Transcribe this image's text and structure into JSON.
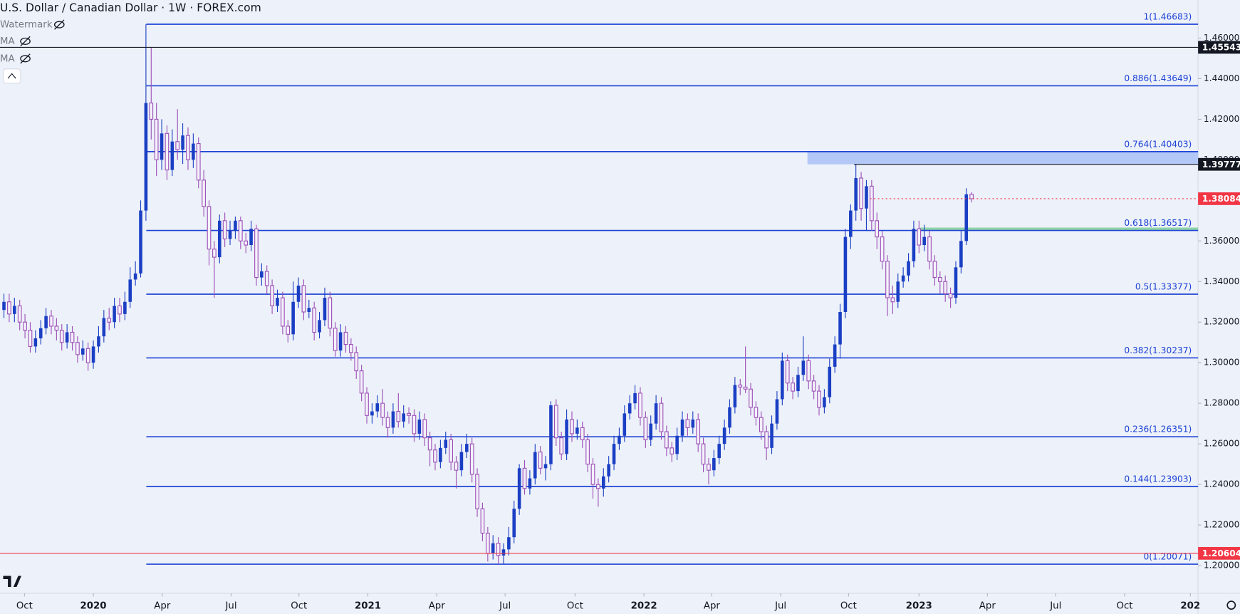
{
  "chart_data": {
    "type": "candlestick",
    "title": "U.S. Dollar / Canadian Dollar · 1W · FOREX.com",
    "indicators": [
      "Watermark",
      "MA",
      "MA"
    ],
    "grid": false,
    "up_color": "#1a3fc4",
    "down_color": "#9c4fb7",
    "xlim": [
      -0.75,
      227.07
    ],
    "xticks": [
      {
        "value": 3.9,
        "label": "Oct"
      },
      {
        "value": 17.0,
        "label": "2020"
      },
      {
        "value": 30.1,
        "label": "Apr"
      },
      {
        "value": 43.2,
        "label": "Jul"
      },
      {
        "value": 56.1,
        "label": "Oct"
      },
      {
        "value": 69.2,
        "label": "2021"
      },
      {
        "value": 82.3,
        "label": "Apr"
      },
      {
        "value": 95.3,
        "label": "Jul"
      },
      {
        "value": 108.6,
        "label": "Oct"
      },
      {
        "value": 121.7,
        "label": "2022"
      },
      {
        "value": 134.6,
        "label": "Apr"
      },
      {
        "value": 147.7,
        "label": "Jul"
      },
      {
        "value": 160.6,
        "label": "Oct"
      },
      {
        "value": 174.0,
        "label": "2023"
      },
      {
        "value": 187.0,
        "label": "Apr"
      },
      {
        "value": 200.0,
        "label": "Jul"
      },
      {
        "value": 213.1,
        "label": "Oct"
      },
      {
        "value": 225.6,
        "label": "202"
      }
    ],
    "ylim": [
      1.18635,
      1.4787
    ],
    "yticks": [
      {
        "value": 1.2,
        "label": "1.20000"
      },
      {
        "value": 1.22,
        "label": "1.22000"
      },
      {
        "value": 1.24,
        "label": "1.24000"
      },
      {
        "value": 1.26,
        "label": "1.26000"
      },
      {
        "value": 1.28,
        "label": "1.28000"
      },
      {
        "value": 1.3,
        "label": "1.30000"
      },
      {
        "value": 1.32,
        "label": "1.32000"
      },
      {
        "value": 1.34,
        "label": "1.34000"
      },
      {
        "value": 1.36,
        "label": "1.36000"
      },
      {
        "value": 1.38,
        "label": "1.38000"
      },
      {
        "value": 1.4,
        "label": "1.40000"
      },
      {
        "value": 1.42,
        "label": "1.42000"
      },
      {
        "value": 1.44,
        "label": "1.44000"
      },
      {
        "value": 1.46,
        "label": "1.46000"
      }
    ],
    "fib_color": "#1e44d6",
    "fib_levels": [
      {
        "label": "1(1.46683)",
        "value": 1.46683
      },
      {
        "label": "0.886(1.43649)",
        "value": 1.43649
      },
      {
        "label": "0.764(1.40403)",
        "value": 1.40403
      },
      {
        "label": "0.618(1.36517)",
        "value": 1.36517
      },
      {
        "label": "0.5(1.33377)",
        "value": 1.33377
      },
      {
        "label": "0.382(1.30237)",
        "value": 1.30237
      },
      {
        "label": "0.236(1.26351)",
        "value": 1.26351
      },
      {
        "label": "0.144(1.23903)",
        "value": 1.23903
      },
      {
        "label": "0(1.20071)",
        "value": 1.20071
      }
    ],
    "price_lines": [
      {
        "value": 1.45543,
        "color": "#131722",
        "style": "solid"
      },
      {
        "value": 1.39777,
        "color": "#131722",
        "style": "solid"
      },
      {
        "value": 1.38084,
        "color": "#f23645",
        "style": "dotted"
      },
      {
        "value": 1.20604,
        "color": "#f23645",
        "style": "solid"
      }
    ],
    "zones": [
      {
        "from": 1.39777,
        "to": 1.40403,
        "color": "#b3c8f7"
      },
      {
        "from": 1.3652,
        "to": 1.3666,
        "color": "#8fd4a8"
      }
    ],
    "ohlc": [
      [
        1.326,
        1.334,
        1.322,
        1.33
      ],
      [
        1.33,
        1.334,
        1.32,
        1.324
      ],
      [
        1.324,
        1.332,
        1.32,
        1.328
      ],
      [
        1.328,
        1.331,
        1.316,
        1.32
      ],
      [
        1.32,
        1.324,
        1.312,
        1.316
      ],
      [
        1.316,
        1.32,
        1.305,
        1.308
      ],
      [
        1.308,
        1.316,
        1.305,
        1.312
      ],
      [
        1.312,
        1.321,
        1.309,
        1.317
      ],
      [
        1.317,
        1.327,
        1.314,
        1.323
      ],
      [
        1.323,
        1.326,
        1.314,
        1.318
      ],
      [
        1.318,
        1.322,
        1.311,
        1.316
      ],
      [
        1.316,
        1.319,
        1.306,
        1.31
      ],
      [
        1.31,
        1.319,
        1.307,
        1.315
      ],
      [
        1.315,
        1.318,
        1.306,
        1.31
      ],
      [
        1.31,
        1.313,
        1.3,
        1.304
      ],
      [
        1.304,
        1.311,
        1.301,
        1.307
      ],
      [
        1.307,
        1.31,
        1.296,
        1.3
      ],
      [
        1.3,
        1.311,
        1.297,
        1.308
      ],
      [
        1.308,
        1.318,
        1.305,
        1.313
      ],
      [
        1.313,
        1.326,
        1.31,
        1.322
      ],
      [
        1.322,
        1.327,
        1.316,
        1.32
      ],
      [
        1.32,
        1.332,
        1.317,
        1.328
      ],
      [
        1.328,
        1.332,
        1.32,
        1.324
      ],
      [
        1.324,
        1.335,
        1.321,
        1.33
      ],
      [
        1.33,
        1.347,
        1.327,
        1.341
      ],
      [
        1.341,
        1.35,
        1.338,
        1.344
      ],
      [
        1.344,
        1.38,
        1.342,
        1.375
      ],
      [
        1.375,
        1.4668,
        1.37,
        1.428
      ],
      [
        1.428,
        1.4554,
        1.41,
        1.42
      ],
      [
        1.42,
        1.428,
        1.392,
        1.4
      ],
      [
        1.4,
        1.42,
        1.395,
        1.413
      ],
      [
        1.413,
        1.417,
        1.39,
        1.395
      ],
      [
        1.395,
        1.415,
        1.392,
        1.409
      ],
      [
        1.409,
        1.425,
        1.4,
        1.405
      ],
      [
        1.405,
        1.418,
        1.398,
        1.412
      ],
      [
        1.412,
        1.416,
        1.395,
        1.4
      ],
      [
        1.4,
        1.413,
        1.396,
        1.408
      ],
      [
        1.408,
        1.411,
        1.386,
        1.39
      ],
      [
        1.39,
        1.395,
        1.372,
        1.377
      ],
      [
        1.377,
        1.38,
        1.348,
        1.356
      ],
      [
        1.356,
        1.36,
        1.332,
        1.352
      ],
      [
        1.352,
        1.373,
        1.349,
        1.37
      ],
      [
        1.37,
        1.374,
        1.357,
        1.361
      ],
      [
        1.361,
        1.37,
        1.358,
        1.365
      ],
      [
        1.365,
        1.372,
        1.361,
        1.37
      ],
      [
        1.37,
        1.372,
        1.356,
        1.36
      ],
      [
        1.36,
        1.364,
        1.354,
        1.358
      ],
      [
        1.358,
        1.37,
        1.355,
        1.366
      ],
      [
        1.366,
        1.368,
        1.338,
        1.342
      ],
      [
        1.342,
        1.349,
        1.338,
        1.345
      ],
      [
        1.345,
        1.348,
        1.334,
        1.338
      ],
      [
        1.338,
        1.341,
        1.324,
        1.328
      ],
      [
        1.328,
        1.336,
        1.325,
        1.332
      ],
      [
        1.332,
        1.335,
        1.314,
        1.318
      ],
      [
        1.318,
        1.321,
        1.31,
        1.314
      ],
      [
        1.314,
        1.34,
        1.311,
        1.33
      ],
      [
        1.33,
        1.342,
        1.327,
        1.338
      ],
      [
        1.338,
        1.341,
        1.321,
        1.325
      ],
      [
        1.325,
        1.331,
        1.322,
        1.327
      ],
      [
        1.327,
        1.33,
        1.311,
        1.315
      ],
      [
        1.315,
        1.325,
        1.312,
        1.321
      ],
      [
        1.321,
        1.337,
        1.318,
        1.332
      ],
      [
        1.332,
        1.335,
        1.313,
        1.317
      ],
      [
        1.317,
        1.32,
        1.303,
        1.306
      ],
      [
        1.306,
        1.319,
        1.303,
        1.315
      ],
      [
        1.315,
        1.318,
        1.305,
        1.309
      ],
      [
        1.309,
        1.312,
        1.301,
        1.305
      ],
      [
        1.305,
        1.308,
        1.292,
        1.296
      ],
      [
        1.296,
        1.299,
        1.281,
        1.285
      ],
      [
        1.285,
        1.288,
        1.27,
        1.274
      ],
      [
        1.274,
        1.28,
        1.27,
        1.276
      ],
      [
        1.276,
        1.284,
        1.273,
        1.28
      ],
      [
        1.28,
        1.287,
        1.269,
        1.273
      ],
      [
        1.273,
        1.276,
        1.263,
        1.268
      ],
      [
        1.268,
        1.28,
        1.265,
        1.276
      ],
      [
        1.276,
        1.285,
        1.268,
        1.271
      ],
      [
        1.271,
        1.279,
        1.268,
        1.275
      ],
      [
        1.275,
        1.278,
        1.27,
        1.274
      ],
      [
        1.274,
        1.277,
        1.261,
        1.265
      ],
      [
        1.265,
        1.276,
        1.262,
        1.272
      ],
      [
        1.272,
        1.275,
        1.259,
        1.263
      ],
      [
        1.263,
        1.266,
        1.249,
        1.257
      ],
      [
        1.257,
        1.26,
        1.247,
        1.251
      ],
      [
        1.251,
        1.262,
        1.248,
        1.258
      ],
      [
        1.258,
        1.266,
        1.255,
        1.262
      ],
      [
        1.262,
        1.265,
        1.247,
        1.251
      ],
      [
        1.251,
        1.254,
        1.238,
        1.247
      ],
      [
        1.247,
        1.26,
        1.244,
        1.256
      ],
      [
        1.256,
        1.265,
        1.253,
        1.26
      ],
      [
        1.26,
        1.263,
        1.241,
        1.245
      ],
      [
        1.245,
        1.248,
        1.224,
        1.228
      ],
      [
        1.228,
        1.231,
        1.212,
        1.216
      ],
      [
        1.216,
        1.219,
        1.202,
        1.206
      ],
      [
        1.206,
        1.215,
        1.203,
        1.211
      ],
      [
        1.211,
        1.214,
        1.2007,
        1.205
      ],
      [
        1.205,
        1.211,
        1.201,
        1.208
      ],
      [
        1.208,
        1.219,
        1.205,
        1.214
      ],
      [
        1.214,
        1.232,
        1.211,
        1.228
      ],
      [
        1.228,
        1.25,
        1.225,
        1.248
      ],
      [
        1.248,
        1.252,
        1.235,
        1.238
      ],
      [
        1.238,
        1.247,
        1.235,
        1.243
      ],
      [
        1.243,
        1.26,
        1.24,
        1.256
      ],
      [
        1.256,
        1.259,
        1.245,
        1.248
      ],
      [
        1.248,
        1.254,
        1.242,
        1.25
      ],
      [
        1.25,
        1.281,
        1.247,
        1.279
      ],
      [
        1.279,
        1.282,
        1.259,
        1.263
      ],
      [
        1.263,
        1.266,
        1.252,
        1.255
      ],
      [
        1.255,
        1.277,
        1.252,
        1.272
      ],
      [
        1.272,
        1.276,
        1.261,
        1.265
      ],
      [
        1.265,
        1.272,
        1.262,
        1.268
      ],
      [
        1.268,
        1.271,
        1.258,
        1.262
      ],
      [
        1.262,
        1.265,
        1.246,
        1.25
      ],
      [
        1.25,
        1.253,
        1.233,
        1.24
      ],
      [
        1.24,
        1.243,
        1.229,
        1.238
      ],
      [
        1.238,
        1.248,
        1.234,
        1.244
      ],
      [
        1.244,
        1.254,
        1.241,
        1.25
      ],
      [
        1.25,
        1.264,
        1.247,
        1.26
      ],
      [
        1.26,
        1.268,
        1.257,
        1.264
      ],
      [
        1.264,
        1.279,
        1.261,
        1.275
      ],
      [
        1.275,
        1.284,
        1.272,
        1.28
      ],
      [
        1.28,
        1.289,
        1.277,
        1.285
      ],
      [
        1.285,
        1.288,
        1.269,
        1.273
      ],
      [
        1.273,
        1.276,
        1.258,
        1.262
      ],
      [
        1.262,
        1.274,
        1.259,
        1.27
      ],
      [
        1.27,
        1.284,
        1.267,
        1.28
      ],
      [
        1.28,
        1.283,
        1.262,
        1.266
      ],
      [
        1.266,
        1.269,
        1.254,
        1.258
      ],
      [
        1.258,
        1.261,
        1.251,
        1.255
      ],
      [
        1.255,
        1.268,
        1.252,
        1.264
      ],
      [
        1.264,
        1.276,
        1.261,
        1.272
      ],
      [
        1.272,
        1.275,
        1.264,
        1.268
      ],
      [
        1.268,
        1.276,
        1.265,
        1.272
      ],
      [
        1.272,
        1.275,
        1.256,
        1.26
      ],
      [
        1.26,
        1.263,
        1.246,
        1.25
      ],
      [
        1.25,
        1.253,
        1.24,
        1.247
      ],
      [
        1.247,
        1.257,
        1.244,
        1.253
      ],
      [
        1.253,
        1.264,
        1.25,
        1.26
      ],
      [
        1.26,
        1.272,
        1.257,
        1.268
      ],
      [
        1.268,
        1.282,
        1.265,
        1.278
      ],
      [
        1.278,
        1.293,
        1.275,
        1.289
      ],
      [
        1.289,
        1.292,
        1.284,
        1.288
      ],
      [
        1.288,
        1.308,
        1.285,
        1.287
      ],
      [
        1.287,
        1.29,
        1.274,
        1.278
      ],
      [
        1.278,
        1.281,
        1.269,
        1.273
      ],
      [
        1.273,
        1.276,
        1.262,
        1.266
      ],
      [
        1.266,
        1.269,
        1.252,
        1.258
      ],
      [
        1.258,
        1.274,
        1.255,
        1.27
      ],
      [
        1.27,
        1.286,
        1.267,
        1.282
      ],
      [
        1.282,
        1.305,
        1.279,
        1.301
      ],
      [
        1.301,
        1.304,
        1.286,
        1.29
      ],
      [
        1.29,
        1.293,
        1.282,
        1.286
      ],
      [
        1.286,
        1.298,
        1.283,
        1.294
      ],
      [
        1.294,
        1.313,
        1.291,
        1.301
      ],
      [
        1.301,
        1.304,
        1.287,
        1.291
      ],
      [
        1.291,
        1.294,
        1.282,
        1.286
      ],
      [
        1.286,
        1.289,
        1.274,
        1.278
      ],
      [
        1.278,
        1.287,
        1.275,
        1.283
      ],
      [
        1.283,
        1.302,
        1.28,
        1.298
      ],
      [
        1.298,
        1.313,
        1.295,
        1.309
      ],
      [
        1.309,
        1.329,
        1.302,
        1.325
      ],
      [
        1.325,
        1.366,
        1.322,
        1.362
      ],
      [
        1.362,
        1.378,
        1.356,
        1.375
      ],
      [
        1.375,
        1.3977,
        1.37,
        1.391
      ],
      [
        1.391,
        1.394,
        1.37,
        1.376
      ],
      [
        1.376,
        1.39,
        1.365,
        1.387
      ],
      [
        1.387,
        1.39,
        1.365,
        1.37
      ],
      [
        1.37,
        1.374,
        1.356,
        1.362
      ],
      [
        1.362,
        1.365,
        1.346,
        1.35
      ],
      [
        1.35,
        1.353,
        1.323,
        1.332
      ],
      [
        1.332,
        1.338,
        1.324,
        1.33
      ],
      [
        1.33,
        1.344,
        1.327,
        1.34
      ],
      [
        1.34,
        1.347,
        1.337,
        1.343
      ],
      [
        1.343,
        1.354,
        1.34,
        1.35
      ],
      [
        1.35,
        1.37,
        1.347,
        1.366
      ],
      [
        1.366,
        1.37,
        1.354,
        1.358
      ],
      [
        1.358,
        1.368,
        1.355,
        1.362
      ],
      [
        1.362,
        1.365,
        1.346,
        1.35
      ],
      [
        1.35,
        1.353,
        1.338,
        1.342
      ],
      [
        1.342,
        1.345,
        1.334,
        1.34
      ],
      [
        1.34,
        1.343,
        1.33,
        1.334
      ],
      [
        1.334,
        1.337,
        1.327,
        1.332
      ],
      [
        1.332,
        1.35,
        1.329,
        1.347
      ],
      [
        1.347,
        1.365,
        1.344,
        1.36
      ],
      [
        1.36,
        1.386,
        1.358,
        1.383
      ],
      [
        1.383,
        1.384,
        1.379,
        1.3808
      ]
    ]
  }
}
